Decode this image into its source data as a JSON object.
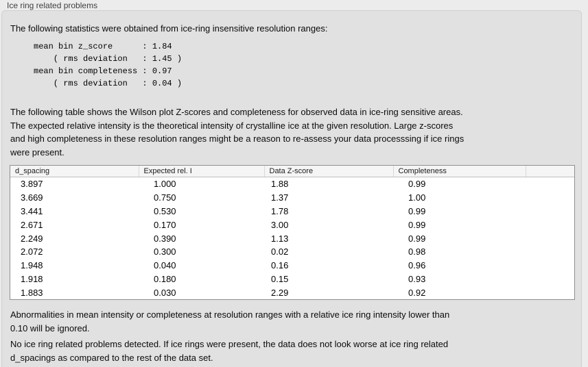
{
  "window": {
    "title": "Ice ring related problems"
  },
  "colors": {
    "page_bg": "#ececec",
    "panel_bg": "#e1e1e1",
    "panel_border": "#cfcfcf",
    "table_bg": "#ffffff",
    "table_border": "#8f8f8f",
    "table_header_bg": "#f5f5f5",
    "text": "#0a0a0a"
  },
  "intro": "The following statistics were obtained from ice-ring insensitive resolution ranges:",
  "stats_block": [
    "mean bin z_score      : 1.84",
    "    ( rms deviation   : 1.45 )",
    "mean bin completeness : 0.97",
    "    ( rms deviation   : 0.04 )"
  ],
  "description": [
    "The following table shows the Wilson plot Z-scores and completeness for observed data in ice-ring sensitive areas.",
    "The expected relative intensity is the theoretical intensity of crystalline ice at the given resolution. Large z-scores",
    "and high completeness in these resolution ranges might be a reason to re-assess your data processsing if ice rings",
    "were present."
  ],
  "table": {
    "columns": [
      "d_spacing",
      "Expected rel. I",
      "Data Z-score",
      "Completeness",
      ""
    ],
    "rows": [
      [
        "3.897",
        "1.000",
        "1.88",
        "0.99"
      ],
      [
        "3.669",
        "0.750",
        "1.37",
        "1.00"
      ],
      [
        "3.441",
        "0.530",
        "1.78",
        "0.99"
      ],
      [
        "2.671",
        "0.170",
        "3.00",
        "0.99"
      ],
      [
        "2.249",
        "0.390",
        "1.13",
        "0.99"
      ],
      [
        "2.072",
        "0.300",
        "0.02",
        "0.98"
      ],
      [
        "1.948",
        "0.040",
        "0.16",
        "0.96"
      ],
      [
        "1.918",
        "0.180",
        "0.15",
        "0.93"
      ],
      [
        "1.883",
        "0.030",
        "2.29",
        "0.92"
      ]
    ]
  },
  "ignore_note": [
    "Abnormalities in mean intensity or completeness at resolution ranges with a relative ice ring intensity lower than",
    "0.10 will be ignored."
  ],
  "conclusion": [
    "No ice ring related problems detected. If ice rings were present, the data does not look worse at ice ring related",
    "d_spacings as compared to the rest of the data set."
  ]
}
